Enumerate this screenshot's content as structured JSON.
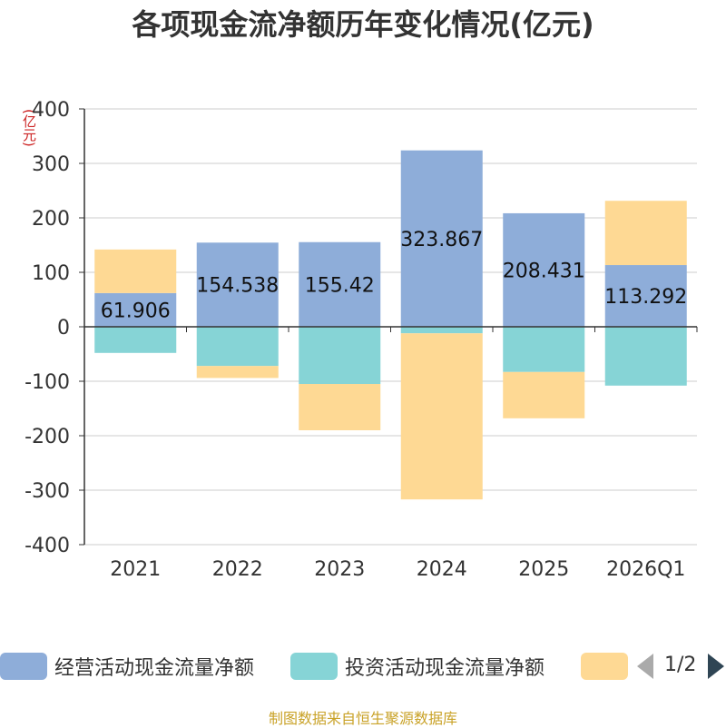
{
  "chart_data": {
    "type": "bar",
    "stacked": true,
    "title": "各项现金流净额历年变化情况(亿元)",
    "unit_label": "(亿元)",
    "categories": [
      "2021",
      "2022",
      "2023",
      "2024",
      "2025",
      "2026Q1"
    ],
    "y_ticks": [
      "400",
      "300",
      "200",
      "100",
      "0",
      "-100",
      "-200",
      "-300",
      "-400"
    ],
    "ylim": [
      -400,
      400
    ],
    "grid": true,
    "legend_position": "bottom",
    "series": [
      {
        "name": "经营活动现金流量净额",
        "color": "#8eadd9",
        "values": [
          61.906,
          154.538,
          155.42,
          323.867,
          208.431,
          113.292
        ],
        "labels": [
          "61.906",
          "154.538",
          "155.42",
          "323.867",
          "208.431",
          "113.292"
        ]
      },
      {
        "name": "投资活动现金流量净额",
        "color": "#86d4d6",
        "values": [
          -48,
          -72,
          -105,
          -12,
          -83,
          -108
        ]
      },
      {
        "name": "",
        "color": "#fed994",
        "values": [
          80,
          -22,
          -85,
          -305,
          -85,
          118
        ]
      }
    ]
  },
  "legend": {
    "items": [
      {
        "label": "经营活动现金流量净额",
        "color": "#8eadd9"
      },
      {
        "label": "投资活动现金流量净额",
        "color": "#86d4d6"
      },
      {
        "label": "",
        "color": "#fed994"
      }
    ],
    "page": "1/2"
  },
  "source": "制图数据来自恒生聚源数据库"
}
